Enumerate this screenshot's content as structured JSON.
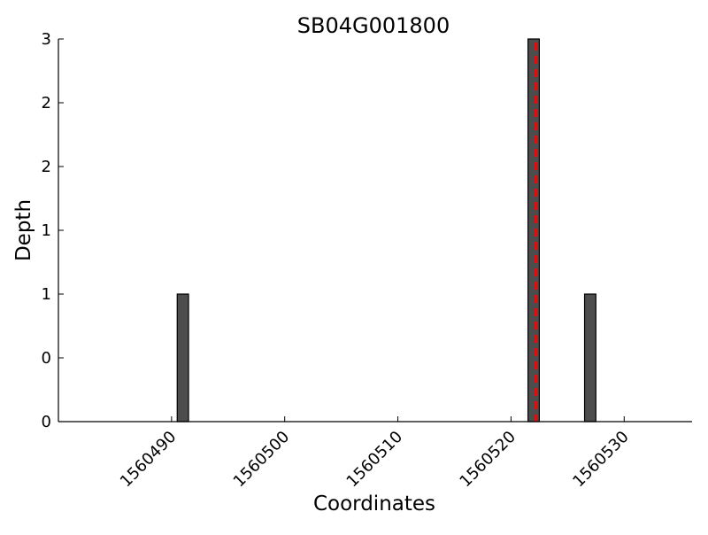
{
  "chart_data": {
    "type": "bar",
    "title": "SB04G001800",
    "xlabel": "Coordinates",
    "ylabel": "Depth",
    "xlim": [
      1560480,
      1560536
    ],
    "ylim": [
      0,
      3
    ],
    "x_ticks": [
      1560490,
      1560500,
      1560510,
      1560520,
      1560530
    ],
    "y_ticks": [
      0,
      0.5,
      1,
      1.5,
      2,
      2.5,
      3
    ],
    "y_tick_labels": [
      "0",
      "0",
      "1",
      "1",
      "2",
      "2",
      "3"
    ],
    "bar_width": 1,
    "bars": [
      {
        "x": 1560491,
        "value": 1
      },
      {
        "x": 1560522,
        "value": 3
      },
      {
        "x": 1560527,
        "value": 1
      }
    ],
    "reference_line": {
      "x": 1560522.2,
      "style": "dashed",
      "color": "#ff0000"
    },
    "bar_color": "#4d4d4d",
    "grid": false
  }
}
